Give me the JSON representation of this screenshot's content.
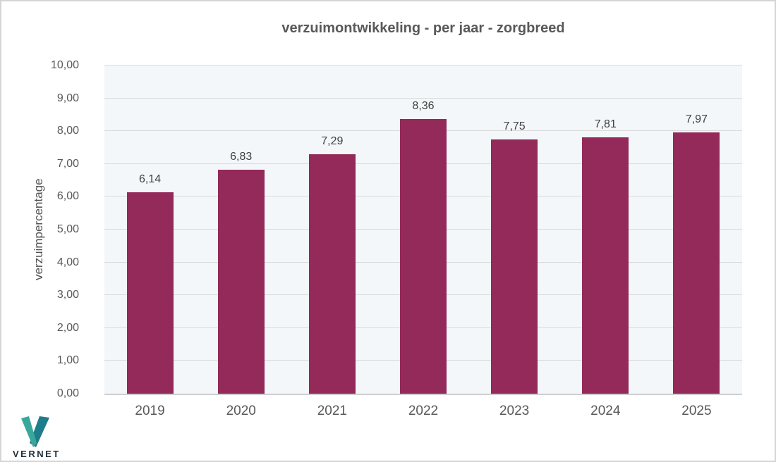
{
  "chart_data": {
    "type": "bar",
    "title": "verzuimontwikkeling - per jaar - zorgbreed",
    "xlabel": "",
    "ylabel": "verzuimpercentage",
    "categories": [
      "2019",
      "2020",
      "2021",
      "2022",
      "2023",
      "2024",
      "2025"
    ],
    "values": [
      6.14,
      6.83,
      7.29,
      8.36,
      7.75,
      7.81,
      7.97
    ],
    "value_labels": [
      "6,14",
      "6,83",
      "7,29",
      "8,36",
      "7,75",
      "7,81",
      "7,97"
    ],
    "ylim": [
      0,
      10
    ],
    "ytick_step": 1,
    "ytick_labels": [
      "0,00",
      "1,00",
      "2,00",
      "3,00",
      "4,00",
      "5,00",
      "6,00",
      "7,00",
      "8,00",
      "9,00",
      "10,00"
    ],
    "grid": true,
    "legend": false,
    "bar_color": "#932a59",
    "plot_bg": "#f3f7fa",
    "gridline_color": "#d9d9d9",
    "title_color": "#595959",
    "label_color": "#404040"
  },
  "logo": {
    "text": "VERNET",
    "icon": "vernet-v-logo",
    "color_light": "#3aa79c",
    "color_dark": "#1e7c8b",
    "text_color": "#1f2e3a"
  }
}
